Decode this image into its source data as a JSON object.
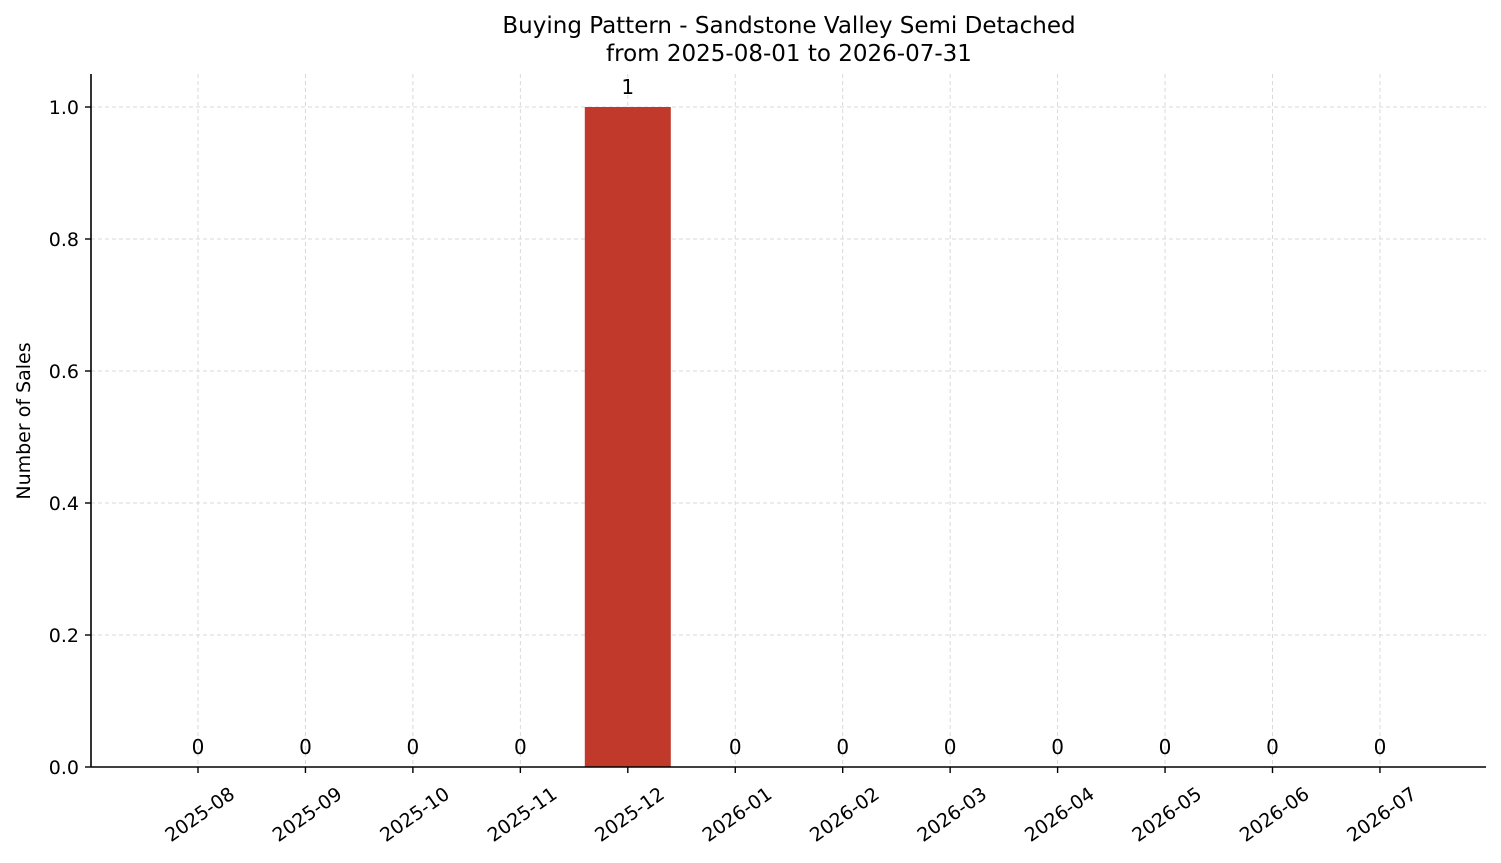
{
  "chart_data": {
    "type": "bar",
    "title": "Buying Pattern - Sandstone Valley Semi Detached",
    "subtitle": "from 2025-08-01 to 2026-07-31",
    "xlabel": "",
    "ylabel": "Number of Sales",
    "categories": [
      "2025-08",
      "2025-09",
      "2025-10",
      "2025-11",
      "2025-12",
      "2026-01",
      "2026-02",
      "2026-03",
      "2026-04",
      "2026-05",
      "2026-06",
      "2026-07"
    ],
    "values": [
      0,
      0,
      0,
      0,
      1,
      0,
      0,
      0,
      0,
      0,
      0,
      0
    ],
    "data_labels": [
      "0",
      "0",
      "0",
      "0",
      "1",
      "0",
      "0",
      "0",
      "0",
      "0",
      "0",
      "0"
    ],
    "ylim": [
      0,
      1.05
    ],
    "yticks": [
      0.0,
      0.2,
      0.4,
      0.6,
      0.8,
      1.0
    ],
    "ytick_labels": [
      "0.0",
      "0.2",
      "0.4",
      "0.6",
      "0.8",
      "1.0"
    ],
    "bar_color": "#c0392b",
    "grid": true,
    "legend": "none"
  }
}
